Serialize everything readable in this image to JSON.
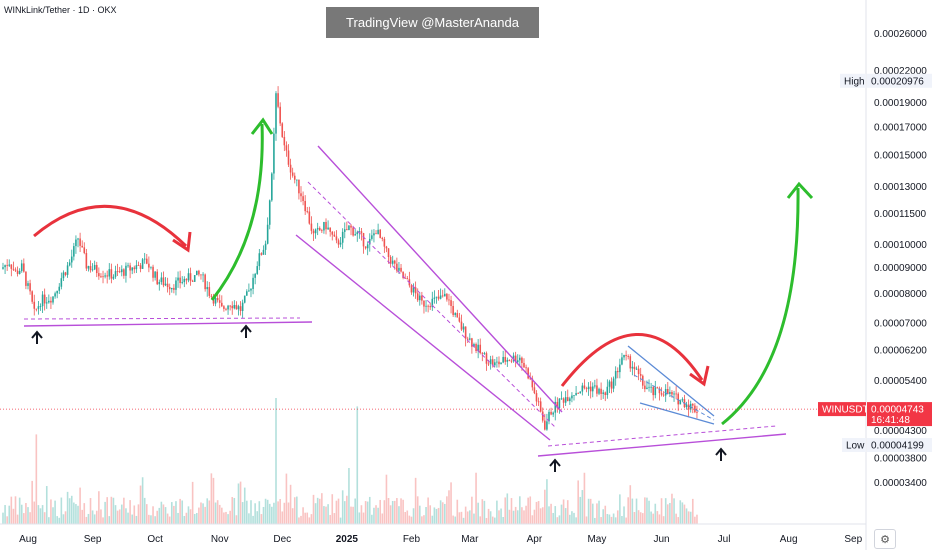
{
  "header": {
    "symbol_title": "WINkLink/Tether · 1D · OKX",
    "watermark": "TradingView @MasterAnanda"
  },
  "chart_data": {
    "type": "candlestick",
    "symbol": "WINUSDT",
    "interval": "1D",
    "exchange": "OKX",
    "y_scale": "log",
    "ylim": [
      3.1e-05,
      0.00028
    ],
    "y_ticks": [
      "0.00026000",
      "0.00022000",
      "0.00019000",
      "0.00017000",
      "0.00015000",
      "0.00013000",
      "0.00011500",
      "0.00010000",
      "0.00009000",
      "0.00008000",
      "0.00007000",
      "0.00006200",
      "0.00005400",
      "0.00004800",
      "0.00004300",
      "0.00003800",
      "0.00003400"
    ],
    "x_ticks": [
      {
        "label": "Aug",
        "date": "2024-08-01"
      },
      {
        "label": "Sep",
        "date": "2024-09-01"
      },
      {
        "label": "Oct",
        "date": "2024-10-01"
      },
      {
        "label": "Nov",
        "date": "2024-11-01"
      },
      {
        "label": "Dec",
        "date": "2024-12-01"
      },
      {
        "label": "2025",
        "date": "2025-01-01"
      },
      {
        "label": "Feb",
        "date": "2025-02-01"
      },
      {
        "label": "Mar",
        "date": "2025-03-01"
      },
      {
        "label": "Apr",
        "date": "2025-04-01"
      },
      {
        "label": "May",
        "date": "2025-05-01"
      },
      {
        "label": "Jun",
        "date": "2025-06-01"
      },
      {
        "label": "Jul",
        "date": "2025-07-01"
      },
      {
        "label": "Aug",
        "date": "2025-08-01"
      },
      {
        "label": "Sep",
        "date": "2025-09-01"
      }
    ],
    "price_path": [
      [
        "2024-07-20",
        8.95e-05
      ],
      [
        "2024-07-24",
        9.25e-05
      ],
      [
        "2024-07-27",
        8.8e-05
      ],
      [
        "2024-07-30",
        9e-05
      ],
      [
        "2024-08-03",
        7.95e-05
      ],
      [
        "2024-08-05",
        7.3e-05
      ],
      [
        "2024-08-08",
        7.75e-05
      ],
      [
        "2024-08-14",
        7.9e-05
      ],
      [
        "2024-08-18",
        8.6e-05
      ],
      [
        "2024-08-22",
        9.2e-05
      ],
      [
        "2024-08-26",
        0.000103
      ],
      [
        "2024-08-30",
        9.1e-05
      ],
      [
        "2024-09-05",
        8.85e-05
      ],
      [
        "2024-09-12",
        8.7e-05
      ],
      [
        "2024-09-20",
        8.95e-05
      ],
      [
        "2024-09-28",
        9.25e-05
      ],
      [
        "2024-10-03",
        8.5e-05
      ],
      [
        "2024-10-10",
        8.3e-05
      ],
      [
        "2024-10-17",
        8.55e-05
      ],
      [
        "2024-10-24",
        8.7e-05
      ],
      [
        "2024-10-28",
        8.05e-05
      ],
      [
        "2024-11-03",
        7.45e-05
      ],
      [
        "2024-11-07",
        7.7e-05
      ],
      [
        "2024-11-12",
        7.45e-05
      ],
      [
        "2024-11-16",
        8.05e-05
      ],
      [
        "2024-11-20",
        9.2e-05
      ],
      [
        "2024-11-24",
        0.000101
      ],
      [
        "2024-11-27",
        0.000135
      ],
      [
        "2024-11-29",
        0.000196
      ],
      [
        "2024-12-03",
        0.000155
      ],
      [
        "2024-12-07",
        0.000137
      ],
      [
        "2024-12-12",
        0.000123
      ],
      [
        "2024-12-17",
        0.000104
      ],
      [
        "2024-12-23",
        0.000109
      ],
      [
        "2024-12-28",
        0.0001
      ],
      [
        "2025-01-03",
        0.000108
      ],
      [
        "2025-01-08",
        0.000104
      ],
      [
        "2025-01-12",
        9.9e-05
      ],
      [
        "2025-01-16",
        0.000107
      ],
      [
        "2025-01-21",
        9.6e-05
      ],
      [
        "2025-01-27",
        8.8e-05
      ],
      [
        "2025-02-02",
        8.2e-05
      ],
      [
        "2025-02-07",
        7.65e-05
      ],
      [
        "2025-02-13",
        7.75e-05
      ],
      [
        "2025-02-19",
        7.9e-05
      ],
      [
        "2025-02-24",
        7.05e-05
      ],
      [
        "2025-03-02",
        6.5e-05
      ],
      [
        "2025-03-08",
        6.05e-05
      ],
      [
        "2025-03-14",
        5.8e-05
      ],
      [
        "2025-03-20",
        5.95e-05
      ],
      [
        "2025-03-26",
        6e-05
      ],
      [
        "2025-03-30",
        5.55e-05
      ],
      [
        "2025-04-03",
        4.95e-05
      ],
      [
        "2025-04-07",
        4.4e-05
      ],
      [
        "2025-04-10",
        4.7e-05
      ],
      [
        "2025-04-15",
        4.95e-05
      ],
      [
        "2025-04-20",
        5.1e-05
      ],
      [
        "2025-04-25",
        5.2e-05
      ],
      [
        "2025-04-30",
        5.25e-05
      ],
      [
        "2025-05-05",
        5.05e-05
      ],
      [
        "2025-05-10",
        5.4e-05
      ],
      [
        "2025-05-14",
        6e-05
      ],
      [
        "2025-05-19",
        5.8e-05
      ],
      [
        "2025-05-24",
        5.3e-05
      ],
      [
        "2025-05-29",
        5.1e-05
      ],
      [
        "2025-06-03",
        5.15e-05
      ],
      [
        "2025-06-08",
        5e-05
      ],
      [
        "2025-06-13",
        4.9e-05
      ],
      [
        "2025-06-18",
        4.74e-05
      ]
    ],
    "price_tags": [
      {
        "label": "High",
        "value": "0.00020976",
        "price": 0.00020976
      },
      {
        "label": "WINUSDT",
        "value": "0.00004743",
        "timer": "16:41:48",
        "price": 4.743e-05
      },
      {
        "label": "Low",
        "value": "0.00004199",
        "price": 4.199e-05
      }
    ],
    "colors": {
      "up": "#26a69a",
      "down": "#ef5350",
      "annotation_red": "#e8323c",
      "annotation_green": "#2dbd2d",
      "channel": "#b84fd9",
      "wedge": "#5c8bd6",
      "current_price": "#f23645"
    },
    "grid": false,
    "volume": true
  }
}
